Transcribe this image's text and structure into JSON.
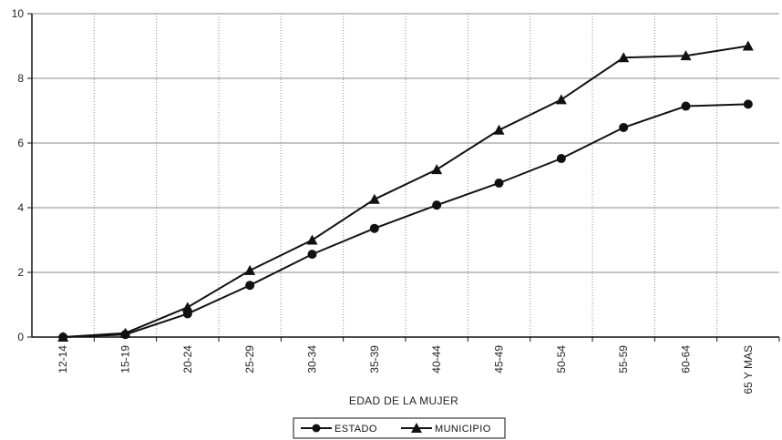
{
  "chart_data": {
    "type": "line",
    "categories": [
      "12-14",
      "15-19",
      "20-24",
      "25-29",
      "30-34",
      "35-39",
      "40-44",
      "45-49",
      "50-54",
      "55-59",
      "60-64",
      "65 Y MAS"
    ],
    "series": [
      {
        "name": "ESTADO",
        "marker": "circle",
        "values": [
          0.0,
          0.08,
          0.72,
          1.6,
          2.56,
          3.36,
          4.08,
          4.76,
          5.52,
          6.48,
          7.14,
          7.2
        ]
      },
      {
        "name": "MUNICIPIO",
        "marker": "triangle",
        "values": [
          0.0,
          0.12,
          0.92,
          2.06,
          3.0,
          4.26,
          5.18,
          6.4,
          7.34,
          8.64,
          8.7,
          9.0
        ]
      }
    ],
    "title": "",
    "xlabel": "EDAD DE LA MUJER",
    "ylabel": "",
    "ylim": [
      0,
      10
    ],
    "yticks": [
      0,
      2,
      4,
      6,
      8,
      10
    ],
    "grid": true,
    "legend_position": "bottom-center",
    "colors": {
      "line": "#111111",
      "grid": "#8a8a8a"
    }
  }
}
